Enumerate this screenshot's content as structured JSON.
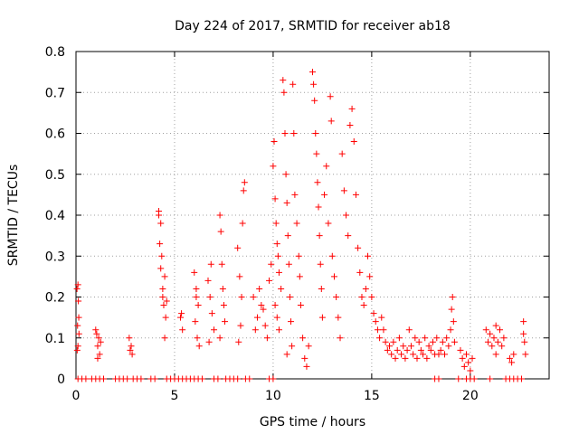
{
  "chart_data": {
    "type": "scatter",
    "title": "Day 224 of 2017, SRMTID for receiver ab18",
    "xlabel": "GPS time / hours",
    "ylabel": "SRMTID / TECUs",
    "xlim": [
      0,
      24
    ],
    "ylim": [
      0,
      0.8
    ],
    "xticks": [
      0,
      5,
      10,
      15,
      20
    ],
    "yticks": [
      0,
      0.1,
      0.2,
      0.3,
      0.4,
      0.5,
      0.6,
      0.7,
      0.8
    ],
    "ytick_labels": [
      "0",
      "0.1",
      "0.2",
      "0.3",
      "0.4",
      "0.5",
      "0.6",
      "0.7",
      "0.8"
    ],
    "grid": true,
    "marker": "+",
    "color": "#ff0000",
    "series": [
      {
        "name": "SRMTID",
        "points": [
          [
            0.05,
            0.22
          ],
          [
            0.08,
            0.13
          ],
          [
            0.1,
            0.08
          ],
          [
            0.12,
            0.19
          ],
          [
            0.15,
            0.11
          ],
          [
            0.1,
            0.23
          ],
          [
            0.06,
            0.07
          ],
          [
            0.14,
            0.15
          ],
          [
            1.0,
            0.12
          ],
          [
            1.1,
            0.08
          ],
          [
            1.15,
            0.1
          ],
          [
            1.2,
            0.06
          ],
          [
            1.05,
            0.11
          ],
          [
            1.25,
            0.09
          ],
          [
            1.1,
            0.05
          ],
          [
            2.7,
            0.1
          ],
          [
            2.75,
            0.07
          ],
          [
            2.8,
            0.08
          ],
          [
            2.85,
            0.06
          ],
          [
            4.2,
            0.41
          ],
          [
            4.25,
            0.33
          ],
          [
            4.3,
            0.38
          ],
          [
            4.35,
            0.3
          ],
          [
            4.4,
            0.22
          ],
          [
            4.45,
            0.18
          ],
          [
            4.5,
            0.25
          ],
          [
            4.55,
            0.15
          ],
          [
            4.6,
            0.19
          ],
          [
            4.3,
            0.27
          ],
          [
            4.5,
            0.1
          ],
          [
            4.4,
            0.2
          ],
          [
            4.2,
            0.4
          ],
          [
            5.3,
            0.15
          ],
          [
            5.4,
            0.12
          ],
          [
            5.35,
            0.16
          ],
          [
            6.0,
            0.26
          ],
          [
            6.1,
            0.22
          ],
          [
            6.2,
            0.18
          ],
          [
            6.05,
            0.14
          ],
          [
            6.15,
            0.1
          ],
          [
            6.25,
            0.08
          ],
          [
            6.1,
            0.2
          ],
          [
            6.7,
            0.24
          ],
          [
            6.8,
            0.2
          ],
          [
            6.9,
            0.16
          ],
          [
            7.0,
            0.12
          ],
          [
            6.85,
            0.28
          ],
          [
            6.75,
            0.09
          ],
          [
            7.3,
            0.4
          ],
          [
            7.35,
            0.36
          ],
          [
            7.4,
            0.28
          ],
          [
            7.45,
            0.22
          ],
          [
            7.5,
            0.18
          ],
          [
            7.55,
            0.14
          ],
          [
            7.3,
            0.1
          ],
          [
            8.2,
            0.32
          ],
          [
            8.3,
            0.25
          ],
          [
            8.4,
            0.2
          ],
          [
            8.5,
            0.46
          ],
          [
            8.55,
            0.48
          ],
          [
            8.45,
            0.38
          ],
          [
            8.35,
            0.13
          ],
          [
            8.25,
            0.09
          ],
          [
            9.0,
            0.2
          ],
          [
            9.2,
            0.15
          ],
          [
            9.4,
            0.18
          ],
          [
            9.6,
            0.13
          ],
          [
            9.8,
            0.24
          ],
          [
            9.1,
            0.12
          ],
          [
            9.3,
            0.22
          ],
          [
            9.5,
            0.17
          ],
          [
            9.7,
            0.1
          ],
          [
            9.9,
            0.28
          ],
          [
            10.0,
            0.52
          ],
          [
            10.05,
            0.58
          ],
          [
            10.1,
            0.44
          ],
          [
            10.15,
            0.38
          ],
          [
            10.2,
            0.33
          ],
          [
            10.25,
            0.3
          ],
          [
            10.3,
            0.26
          ],
          [
            10.1,
            0.18
          ],
          [
            10.2,
            0.15
          ],
          [
            10.3,
            0.12
          ],
          [
            10.4,
            0.22
          ],
          [
            10.5,
            0.73
          ],
          [
            10.55,
            0.7
          ],
          [
            10.6,
            0.6
          ],
          [
            10.65,
            0.5
          ],
          [
            10.7,
            0.43
          ],
          [
            10.75,
            0.35
          ],
          [
            10.8,
            0.28
          ],
          [
            10.85,
            0.2
          ],
          [
            10.9,
            0.14
          ],
          [
            10.95,
            0.08
          ],
          [
            10.7,
            0.06
          ],
          [
            11.0,
            0.72
          ],
          [
            11.05,
            0.6
          ],
          [
            11.1,
            0.45
          ],
          [
            11.2,
            0.38
          ],
          [
            11.3,
            0.3
          ],
          [
            11.35,
            0.25
          ],
          [
            11.4,
            0.18
          ],
          [
            11.5,
            0.1
          ],
          [
            11.6,
            0.05
          ],
          [
            11.7,
            0.03
          ],
          [
            11.8,
            0.08
          ],
          [
            12.0,
            0.75
          ],
          [
            12.05,
            0.72
          ],
          [
            12.1,
            0.68
          ],
          [
            12.15,
            0.6
          ],
          [
            12.2,
            0.55
          ],
          [
            12.25,
            0.48
          ],
          [
            12.3,
            0.42
          ],
          [
            12.35,
            0.35
          ],
          [
            12.4,
            0.28
          ],
          [
            12.45,
            0.22
          ],
          [
            12.5,
            0.15
          ],
          [
            12.6,
            0.45
          ],
          [
            12.7,
            0.52
          ],
          [
            12.8,
            0.38
          ],
          [
            12.9,
            0.69
          ],
          [
            12.95,
            0.63
          ],
          [
            13.0,
            0.3
          ],
          [
            13.1,
            0.25
          ],
          [
            13.2,
            0.2
          ],
          [
            13.3,
            0.15
          ],
          [
            13.4,
            0.1
          ],
          [
            13.5,
            0.55
          ],
          [
            13.6,
            0.46
          ],
          [
            13.7,
            0.4
          ],
          [
            13.8,
            0.35
          ],
          [
            13.9,
            0.62
          ],
          [
            14.0,
            0.66
          ],
          [
            14.1,
            0.58
          ],
          [
            14.2,
            0.45
          ],
          [
            14.3,
            0.32
          ],
          [
            14.4,
            0.26
          ],
          [
            14.5,
            0.2
          ],
          [
            14.6,
            0.18
          ],
          [
            14.7,
            0.22
          ],
          [
            14.8,
            0.3
          ],
          [
            14.9,
            0.25
          ],
          [
            15.0,
            0.2
          ],
          [
            15.1,
            0.16
          ],
          [
            15.2,
            0.14
          ],
          [
            15.3,
            0.12
          ],
          [
            15.4,
            0.1
          ],
          [
            15.5,
            0.15
          ],
          [
            15.6,
            0.12
          ],
          [
            15.7,
            0.09
          ],
          [
            15.8,
            0.07
          ],
          [
            15.9,
            0.08
          ],
          [
            16.0,
            0.06
          ],
          [
            16.1,
            0.09
          ],
          [
            16.2,
            0.05
          ],
          [
            16.3,
            0.07
          ],
          [
            16.4,
            0.1
          ],
          [
            16.5,
            0.06
          ],
          [
            16.6,
            0.08
          ],
          [
            16.7,
            0.05
          ],
          [
            16.8,
            0.07
          ],
          [
            16.9,
            0.12
          ],
          [
            17.0,
            0.08
          ],
          [
            17.1,
            0.06
          ],
          [
            17.2,
            0.1
          ],
          [
            17.3,
            0.05
          ],
          [
            17.4,
            0.09
          ],
          [
            17.5,
            0.07
          ],
          [
            17.6,
            0.06
          ],
          [
            17.7,
            0.1
          ],
          [
            17.8,
            0.05
          ],
          [
            17.9,
            0.08
          ],
          [
            18.0,
            0.07
          ],
          [
            18.1,
            0.09
          ],
          [
            18.2,
            0.06
          ],
          [
            18.3,
            0.1
          ],
          [
            18.4,
            0.06
          ],
          [
            18.5,
            0.07
          ],
          [
            18.6,
            0.09
          ],
          [
            18.7,
            0.06
          ],
          [
            18.8,
            0.1
          ],
          [
            18.9,
            0.08
          ],
          [
            19.0,
            0.12
          ],
          [
            19.1,
            0.2
          ],
          [
            19.05,
            0.17
          ],
          [
            19.15,
            0.14
          ],
          [
            19.2,
            0.09
          ],
          [
            19.5,
            0.07
          ],
          [
            19.6,
            0.05
          ],
          [
            19.7,
            0.03
          ],
          [
            19.8,
            0.06
          ],
          [
            19.9,
            0.04
          ],
          [
            20.0,
            0.02
          ],
          [
            20.1,
            0.05
          ],
          [
            20.8,
            0.12
          ],
          [
            20.9,
            0.09
          ],
          [
            21.0,
            0.11
          ],
          [
            21.1,
            0.08
          ],
          [
            21.2,
            0.1
          ],
          [
            21.3,
            0.13
          ],
          [
            21.4,
            0.09
          ],
          [
            21.5,
            0.12
          ],
          [
            21.6,
            0.08
          ],
          [
            21.7,
            0.1
          ],
          [
            21.3,
            0.06
          ],
          [
            22.0,
            0.05
          ],
          [
            22.1,
            0.04
          ],
          [
            22.2,
            0.06
          ],
          [
            22.7,
            0.14
          ],
          [
            22.75,
            0.09
          ],
          [
            22.8,
            0.06
          ],
          [
            22.7,
            0.11
          ]
        ],
        "zero_points": [
          0.1,
          0.3,
          0.5,
          0.8,
          1.0,
          1.2,
          1.4,
          2.0,
          2.2,
          2.4,
          2.6,
          2.9,
          3.1,
          3.3,
          3.8,
          4.0,
          4.6,
          4.8,
          5.0,
          5.2,
          5.4,
          5.6,
          5.8,
          6.0,
          6.2,
          6.4,
          7.0,
          7.2,
          7.6,
          7.8,
          8.0,
          8.2,
          8.6,
          8.8,
          9.8,
          10.0,
          18.2,
          18.4,
          19.4,
          19.8,
          20.0,
          20.2,
          21.0,
          21.8,
          22.0,
          22.2,
          22.4,
          22.6
        ]
      }
    ]
  }
}
